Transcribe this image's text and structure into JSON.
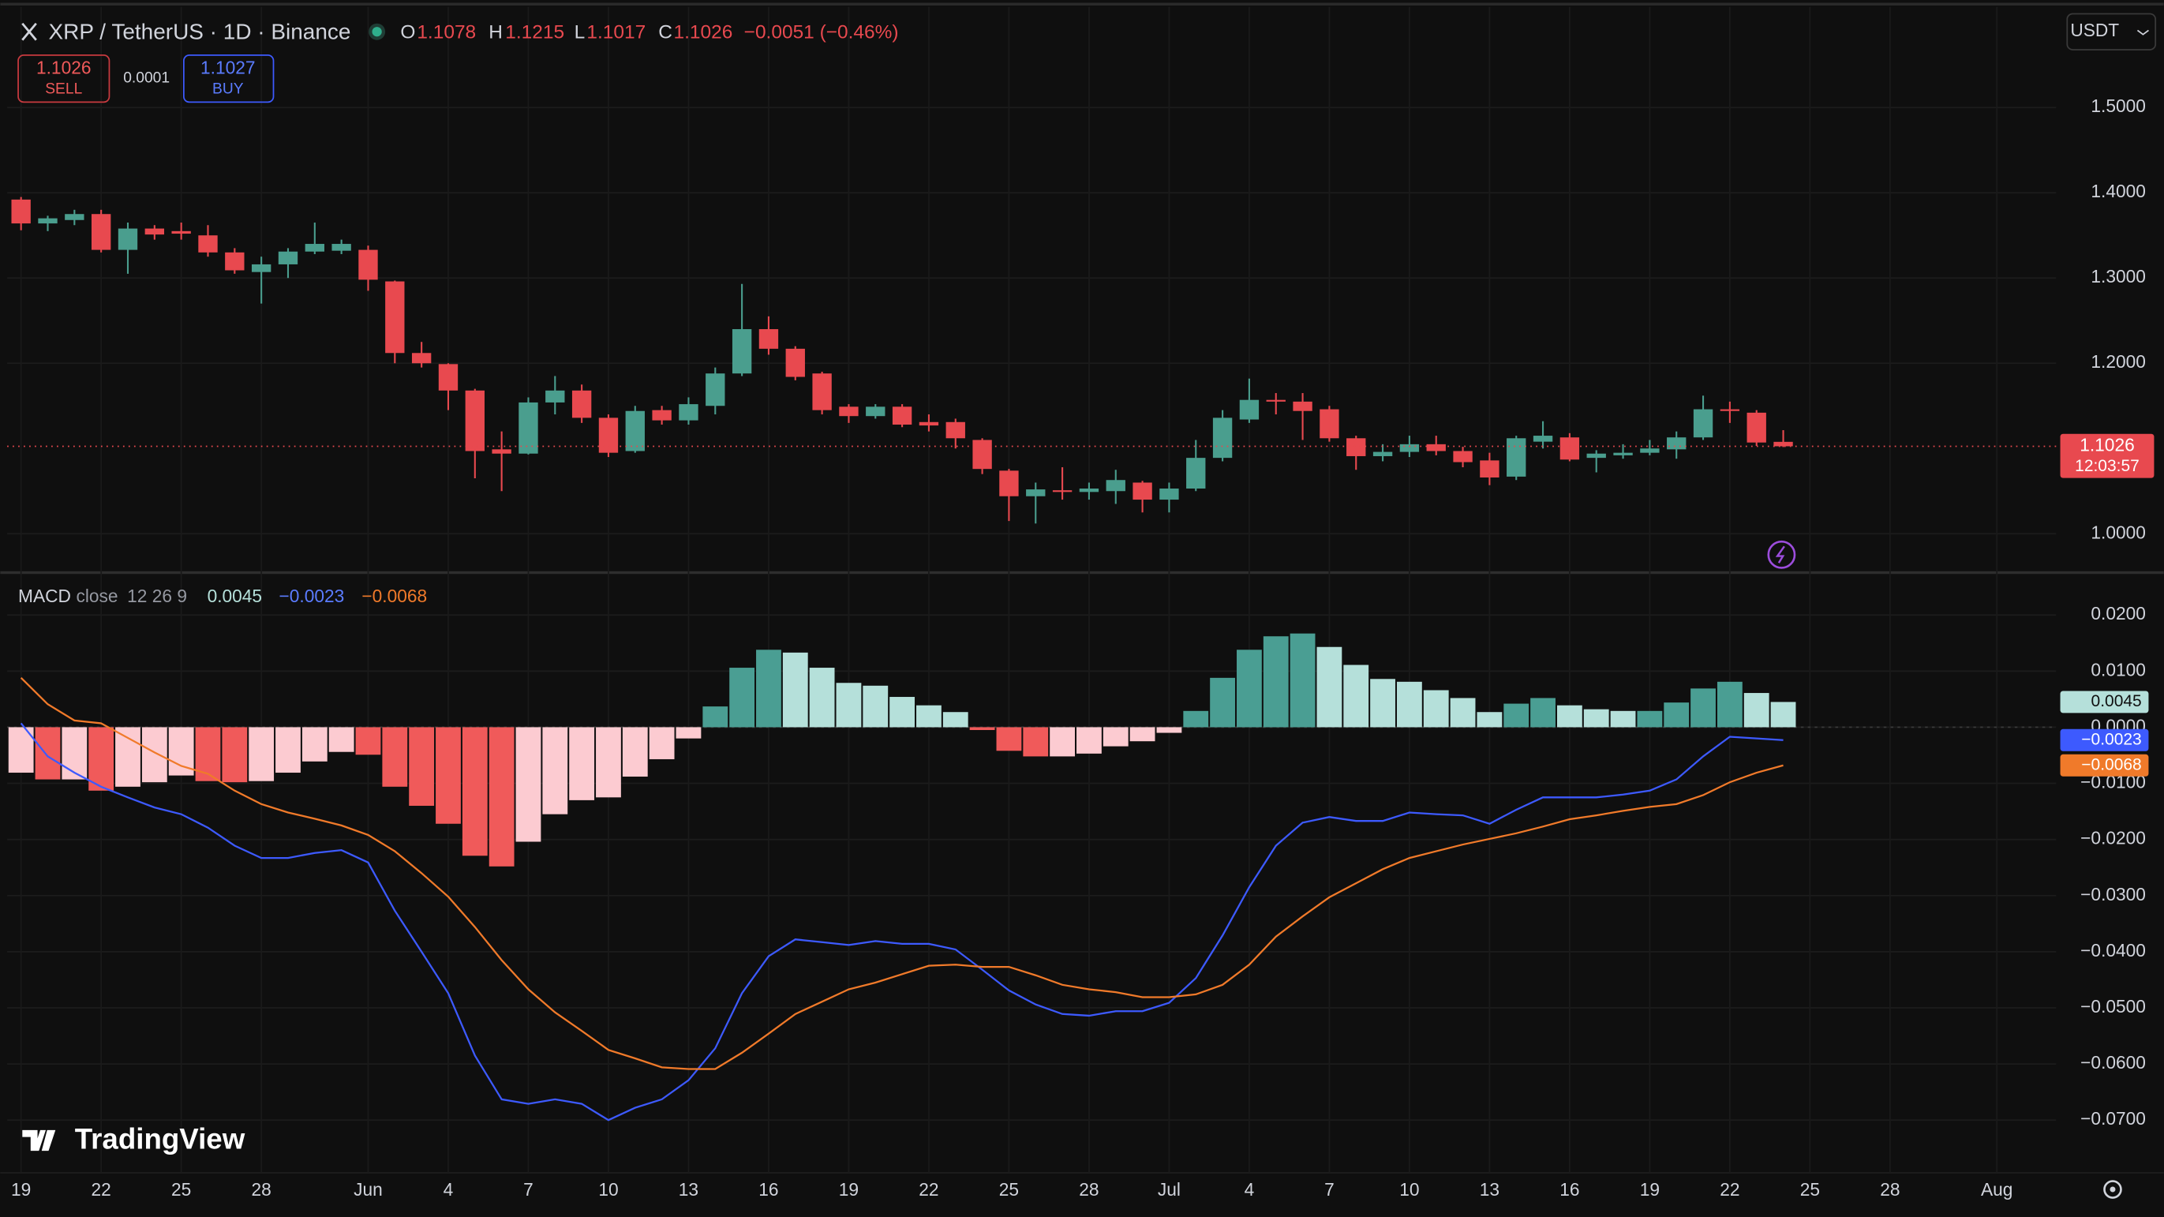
{
  "header": {
    "symbol": "XRP / TetherUS · 1D · Binance",
    "o": "O",
    "h": "H",
    "l": "L",
    "c": "C",
    "change": "−0.0051 (−0.46%)",
    "currency": "USDT"
  },
  "trade": {
    "sell_price": 1.1026,
    "sell": "SELL",
    "spread": 0.0001,
    "buy_price": 1.1027,
    "buy": "BUY"
  },
  "countdown": "12:03:57",
  "watermark": "TradingView",
  "chart_data": [
    {
      "type": "candlestick",
      "xlim": [
        -0.52,
        76.22
      ],
      "ylim": [
        0.956,
        1.618
      ],
      "yticks": [
        {
          "value": 1.5,
          "label": "1.5000"
        },
        {
          "value": 1.4,
          "label": "1.4000"
        },
        {
          "value": 1.3,
          "label": "1.3000"
        },
        {
          "value": 1.2,
          "label": "1.2000"
        },
        {
          "value": 1.0,
          "label": "1.0000"
        }
      ],
      "grid": true,
      "up_color": "#4a9e8e",
      "down_color": "#e8494f",
      "open": [
        1.392,
        1.364,
        1.368,
        1.375,
        1.333,
        1.358,
        1.355,
        1.35,
        1.33,
        1.307,
        1.316,
        1.331,
        1.332,
        1.333,
        1.296,
        1.212,
        1.199,
        1.168,
        1.099,
        1.094,
        1.154,
        1.168,
        1.136,
        1.097,
        1.145,
        1.133,
        1.15,
        1.188,
        1.24,
        1.217,
        1.188,
        1.149,
        1.138,
        1.149,
        1.131,
        1.131,
        1.11,
        1.074,
        1.044,
        1.051,
        1.049,
        1.05,
        1.06,
        1.04,
        1.053,
        1.089,
        1.134,
        1.157,
        1.155,
        1.146,
        1.112,
        1.091,
        1.096,
        1.105,
        1.097,
        1.086,
        1.067,
        1.108,
        1.113,
        1.089,
        1.092,
        1.095,
        1.099,
        1.113,
        1.146,
        1.142,
        1.1078
      ],
      "high": [
        1.395,
        1.373,
        1.38,
        1.38,
        1.365,
        1.362,
        1.365,
        1.362,
        1.335,
        1.325,
        1.335,
        1.365,
        1.345,
        1.338,
        1.297,
        1.225,
        1.2,
        1.17,
        1.12,
        1.16,
        1.185,
        1.175,
        1.14,
        1.15,
        1.15,
        1.16,
        1.195,
        1.293,
        1.255,
        1.22,
        1.19,
        1.152,
        1.152,
        1.152,
        1.14,
        1.135,
        1.112,
        1.076,
        1.06,
        1.078,
        1.06,
        1.075,
        1.062,
        1.06,
        1.11,
        1.145,
        1.182,
        1.165,
        1.165,
        1.15,
        1.115,
        1.105,
        1.115,
        1.115,
        1.102,
        1.095,
        1.115,
        1.132,
        1.118,
        1.098,
        1.105,
        1.11,
        1.12,
        1.162,
        1.155,
        1.145,
        1.1215
      ],
      "low": [
        1.356,
        1.355,
        1.362,
        1.33,
        1.305,
        1.345,
        1.345,
        1.325,
        1.305,
        1.27,
        1.3,
        1.328,
        1.328,
        1.285,
        1.2,
        1.195,
        1.145,
        1.065,
        1.05,
        1.093,
        1.14,
        1.13,
        1.09,
        1.095,
        1.128,
        1.128,
        1.14,
        1.185,
        1.21,
        1.18,
        1.14,
        1.13,
        1.135,
        1.125,
        1.12,
        1.1,
        1.07,
        1.015,
        1.012,
        1.04,
        1.04,
        1.035,
        1.025,
        1.025,
        1.05,
        1.085,
        1.13,
        1.14,
        1.11,
        1.108,
        1.075,
        1.085,
        1.09,
        1.092,
        1.078,
        1.057,
        1.063,
        1.1,
        1.085,
        1.072,
        1.088,
        1.092,
        1.088,
        1.11,
        1.13,
        1.103,
        1.1017
      ],
      "close": [
        1.364,
        1.37,
        1.375,
        1.333,
        1.358,
        1.351,
        1.352,
        1.33,
        1.309,
        1.316,
        1.331,
        1.34,
        1.34,
        1.298,
        1.212,
        1.2,
        1.168,
        1.097,
        1.094,
        1.154,
        1.168,
        1.136,
        1.095,
        1.144,
        1.133,
        1.152,
        1.188,
        1.24,
        1.217,
        1.184,
        1.145,
        1.138,
        1.149,
        1.128,
        1.127,
        1.112,
        1.076,
        1.044,
        1.052,
        1.049,
        1.053,
        1.063,
        1.04,
        1.053,
        1.089,
        1.136,
        1.157,
        1.155,
        1.144,
        1.112,
        1.091,
        1.096,
        1.105,
        1.097,
        1.084,
        1.066,
        1.112,
        1.115,
        1.087,
        1.094,
        1.095,
        1.1,
        1.113,
        1.146,
        1.144,
        1.107,
        1.1026
      ]
    },
    {
      "type": "macd",
      "title": "MACD",
      "source": "close",
      "params": "12 26 9",
      "legend_values": [
        "0.0045",
        "−0.0023",
        "−0.0068"
      ],
      "xlim": [
        -0.52,
        76.22
      ],
      "ylim": [
        -0.0794,
        0.0273
      ],
      "xticks": [
        {
          "value": 0,
          "label": "19"
        },
        {
          "value": 3,
          "label": "22"
        },
        {
          "value": 6,
          "label": "25"
        },
        {
          "value": 9,
          "label": "28"
        },
        {
          "value": 13,
          "label": "Jun"
        },
        {
          "value": 16,
          "label": "4"
        },
        {
          "value": 19,
          "label": "7"
        },
        {
          "value": 22,
          "label": "10"
        },
        {
          "value": 25,
          "label": "13"
        },
        {
          "value": 28,
          "label": "16"
        },
        {
          "value": 31,
          "label": "19"
        },
        {
          "value": 34,
          "label": "22"
        },
        {
          "value": 37,
          "label": "25"
        },
        {
          "value": 40,
          "label": "28"
        },
        {
          "value": 43,
          "label": "Jul"
        },
        {
          "value": 46,
          "label": "4"
        },
        {
          "value": 49,
          "label": "7"
        },
        {
          "value": 52,
          "label": "10"
        },
        {
          "value": 55,
          "label": "13"
        },
        {
          "value": 58,
          "label": "16"
        },
        {
          "value": 61,
          "label": "19"
        },
        {
          "value": 64,
          "label": "22"
        },
        {
          "value": 67,
          "label": "25"
        },
        {
          "value": 70,
          "label": "28"
        },
        {
          "value": 74,
          "label": "Aug"
        }
      ],
      "yticks": [
        {
          "value": 0.02,
          "label": "0.0200"
        },
        {
          "value": 0.01,
          "label": "0.0100"
        },
        {
          "value": 0,
          "label": "0.0000"
        },
        {
          "value": -0.01,
          "label": "−0.0100"
        },
        {
          "value": -0.02,
          "label": "−0.0200"
        },
        {
          "value": -0.03,
          "label": "−0.0300"
        },
        {
          "value": -0.04,
          "label": "−0.0400"
        },
        {
          "value": -0.05,
          "label": "−0.0500"
        },
        {
          "value": -0.06,
          "label": "−0.0600"
        },
        {
          "value": -0.07,
          "label": "−0.0700"
        }
      ],
      "grid": true,
      "histogram": {
        "colors": {
          "rising_positive": "#4a9e93",
          "falling_positive": "#b5e0da",
          "falling_negative": "#f05a5a",
          "rising_negative": "#fccbd1"
        },
        "values": [
          -0.0081,
          -0.0093,
          -0.0093,
          -0.0113,
          -0.0106,
          -0.0098,
          -0.0086,
          -0.0096,
          -0.0098,
          -0.0096,
          -0.0081,
          -0.0061,
          -0.0044,
          -0.0049,
          -0.0106,
          -0.014,
          -0.0172,
          -0.0229,
          -0.0248,
          -0.0204,
          -0.0155,
          -0.013,
          -0.0125,
          -0.0088,
          -0.0057,
          -0.002,
          0.0037,
          0.0106,
          0.0138,
          0.0133,
          0.0106,
          0.0079,
          0.0074,
          0.0054,
          0.0039,
          0.0027,
          -0.0005,
          -0.0042,
          -0.0052,
          -0.0052,
          -0.0047,
          -0.0034,
          -0.0025,
          -0.001,
          0.0029,
          0.0088,
          0.0138,
          0.0162,
          0.0167,
          0.0143,
          0.0111,
          0.0086,
          0.0081,
          0.0066,
          0.0052,
          0.0027,
          0.0042,
          0.0052,
          0.0039,
          0.0032,
          0.0029,
          0.0029,
          0.0044,
          0.0069,
          0.0081,
          0.0061,
          0.0045
        ]
      },
      "series": [
        {
          "color": "#3d5afe",
          "values": [
            0.0007,
            -0.0052,
            -0.0081,
            -0.0106,
            -0.0125,
            -0.0143,
            -0.0155,
            -0.0179,
            -0.0211,
            -0.0233,
            -0.0233,
            -0.0224,
            -0.0219,
            -0.0241,
            -0.0327,
            -0.04,
            -0.0474,
            -0.0585,
            -0.0663,
            -0.0671,
            -0.0663,
            -0.0671,
            -0.07,
            -0.0678,
            -0.0663,
            -0.0629,
            -0.0572,
            -0.0474,
            -0.0408,
            -0.0378,
            -0.0383,
            -0.0388,
            -0.0381,
            -0.0386,
            -0.0386,
            -0.0396,
            -0.0432,
            -0.0469,
            -0.0494,
            -0.0511,
            -0.0514,
            -0.0506,
            -0.0506,
            -0.0491,
            -0.0447,
            -0.0371,
            -0.0285,
            -0.0211,
            -0.017,
            -0.016,
            -0.0167,
            -0.0167,
            -0.0152,
            -0.0155,
            -0.0157,
            -0.0172,
            -0.0147,
            -0.0125,
            -0.0125,
            -0.0125,
            -0.012,
            -0.0113,
            -0.0093,
            -0.0052,
            -0.0017,
            -0.002,
            -0.0023
          ]
        },
        {
          "color": "#f07a2a",
          "values": [
            0.0088,
            0.0041,
            0.0012,
            0.0007,
            -0.0019,
            -0.0045,
            -0.0069,
            -0.0083,
            -0.0113,
            -0.0137,
            -0.0152,
            -0.0163,
            -0.0175,
            -0.0192,
            -0.0221,
            -0.026,
            -0.0302,
            -0.0356,
            -0.0415,
            -0.0467,
            -0.0508,
            -0.0541,
            -0.0575,
            -0.059,
            -0.0606,
            -0.0609,
            -0.0609,
            -0.058,
            -0.0546,
            -0.0511,
            -0.0489,
            -0.0467,
            -0.0455,
            -0.044,
            -0.0425,
            -0.0423,
            -0.0427,
            -0.0427,
            -0.0442,
            -0.0459,
            -0.0467,
            -0.0472,
            -0.0481,
            -0.0481,
            -0.0476,
            -0.0459,
            -0.0423,
            -0.0373,
            -0.0337,
            -0.0303,
            -0.0278,
            -0.0253,
            -0.0233,
            -0.0221,
            -0.0209,
            -0.0199,
            -0.0189,
            -0.0177,
            -0.0164,
            -0.0157,
            -0.0149,
            -0.0142,
            -0.0137,
            -0.0121,
            -0.0098,
            -0.0081,
            -0.0068
          ]
        }
      ]
    }
  ]
}
